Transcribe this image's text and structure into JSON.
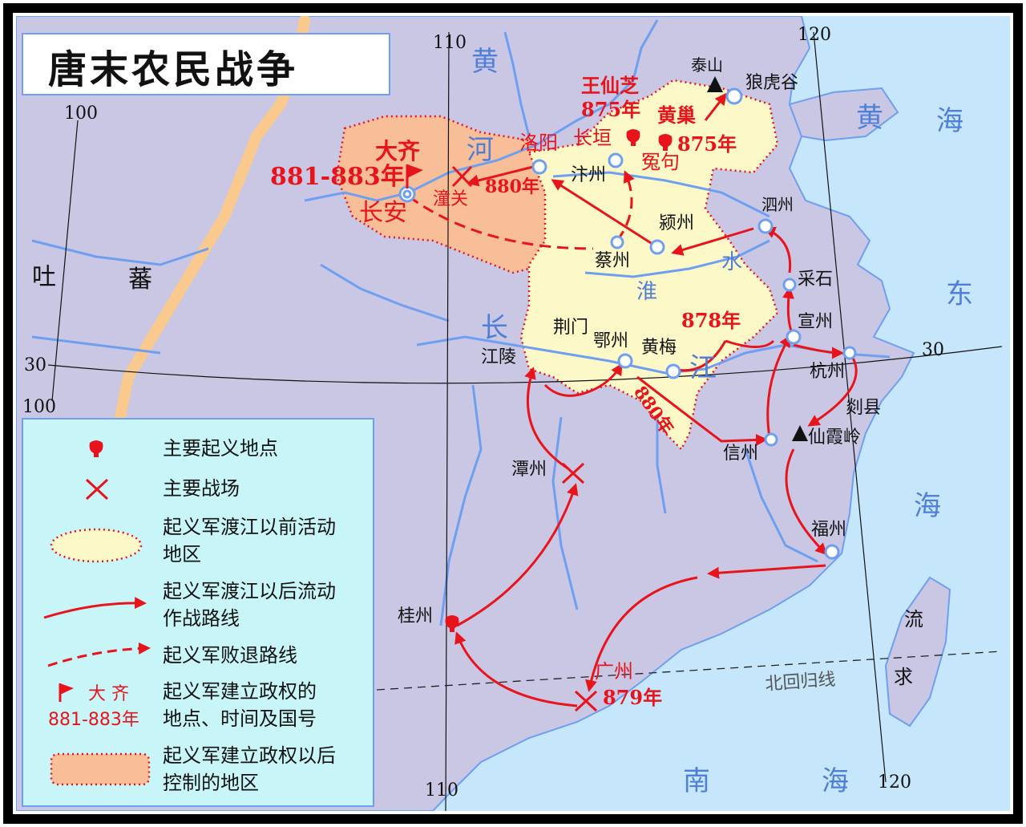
{
  "title": "唐末农民战争",
  "colors": {
    "land": "#c9c7e3",
    "sea": "#c6e6fb",
    "river": "#6e9ff0",
    "pre_area": "#fdf8c8",
    "post_area": "#f8be98",
    "route": "#e8141c",
    "legend_bg": "#c8f6f8",
    "desert": "#f9c98e"
  },
  "grid": {
    "lon_110_top": "110",
    "lon_120_top": "120",
    "lon_100_top": "100",
    "lon_100_bottom": "100",
    "lon_110_bottom": "110",
    "lon_120_bottom": "120",
    "lat_30_left": "30",
    "lat_30_right": "30",
    "tropic": "北回归线"
  },
  "water_labels": {
    "huang_he_1": "黄",
    "huang_he_2": "河",
    "huai_1": "淮",
    "huai_2": "水",
    "chang_1": "长",
    "chang_2": "江",
    "huang_hai_1": "黄",
    "huang_hai_2": "海",
    "dong_hai_1": "东",
    "dong_hai_2": "海",
    "nan_hai_1": "南",
    "nan_hai_2": "海"
  },
  "regions": {
    "tubo_1": "吐",
    "tubo_2": "蕃",
    "liuqiu_1": "流",
    "liuqiu_2": "求"
  },
  "places": {
    "taishan": "泰山",
    "langhugu": "狼虎谷",
    "luoyang": "洛阳",
    "bianzhou": "汴州",
    "changyuan": "长垣",
    "yuanju": "冤句",
    "changan": "长安",
    "tongguan": "潼关",
    "yingzhou": "颍州",
    "caizhou": "蔡州",
    "sizhou": "泗州",
    "caishi": "采石",
    "xuanzhou": "宣州",
    "hangzhou": "杭州",
    "shanxian": "剡县",
    "xianxialing": "仙霞岭",
    "xinzhou": "信州",
    "fuzhou": "福州",
    "jingmen": "荆门",
    "jiangling": "江陵",
    "ezhou": "鄂州",
    "huangmei": "黄梅",
    "tanzhou": "潭州",
    "guizhou": "桂州",
    "guangzhou": "广州"
  },
  "events": {
    "wang_xianzhi": "王仙芝",
    "wang_year": "875年",
    "huang_chao": "黄巢",
    "huang_year": "875年",
    "daqi": "大齐",
    "daqi_years": "881-883年",
    "year_880_north": "880年",
    "year_878": "878年",
    "year_880_river": "880年",
    "year_879": "879年"
  },
  "legend": {
    "uprising": "主要起义地点",
    "battlefield": "主要战场",
    "pre_area_1": "起义军渡江以前活动",
    "pre_area_2": "地区",
    "route_1": "起义军渡江以后流动",
    "route_2": "作战路线",
    "retreat": "起义军败退路线",
    "regime_name": "大 齐",
    "regime_years": "881-883年",
    "regime_1": "起义军建立政权的",
    "regime_2": "地点、时间及国号",
    "post_area_1": "起义军建立政权以后",
    "post_area_2": "控制的地区"
  }
}
